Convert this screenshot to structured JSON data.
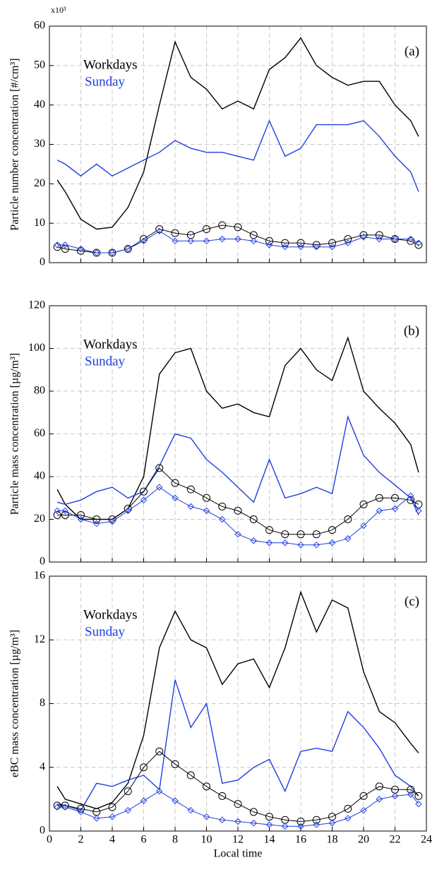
{
  "chart_data": [
    {
      "type": "line",
      "panel_label": "(a)",
      "ylabel": "Particle number concentration [#/cm³]",
      "y_multiplier": "x10³",
      "x": [
        0.5,
        1,
        2,
        3,
        4,
        5,
        6,
        7,
        8,
        9,
        10,
        11,
        12,
        13,
        14,
        15,
        16,
        17,
        18,
        19,
        20,
        21,
        22,
        23,
        23.5
      ],
      "xlim": [
        0,
        24
      ],
      "xticks": [
        0,
        2,
        4,
        6,
        8,
        10,
        12,
        14,
        16,
        18,
        20,
        22,
        24
      ],
      "show_xtick_labels": false,
      "ylim": [
        0,
        60
      ],
      "yticks": [
        0,
        10,
        20,
        30,
        40,
        50,
        60
      ],
      "grid": true,
      "series": [
        {
          "name": "Workdays",
          "color": "#000000",
          "values": [
            21,
            18,
            11,
            8.5,
            9,
            14,
            23,
            40,
            56,
            47,
            44,
            39,
            41,
            39,
            49,
            52,
            57,
            50,
            47,
            45,
            46,
            46,
            40,
            36,
            32
          ]
        },
        {
          "name": "Sunday",
          "color": "#1f3fe0",
          "values": [
            26,
            25,
            22,
            25,
            22,
            24,
            26,
            28,
            31,
            29,
            28,
            28,
            27,
            26,
            36,
            27,
            29,
            35,
            35,
            35,
            36,
            32,
            27,
            23,
            18
          ]
        },
        {
          "color": "#000000",
          "marker": "circle",
          "values": [
            4,
            3.5,
            3,
            2.5,
            2.5,
            3.5,
            6,
            8.5,
            7.5,
            7,
            8.5,
            9.5,
            9,
            7,
            5.5,
            5,
            5,
            4.5,
            5,
            6,
            7,
            7,
            6,
            5.5,
            4.5
          ]
        },
        {
          "color": "#1f3fe0",
          "marker": "diamond",
          "values": [
            4.5,
            4.5,
            3.5,
            2.5,
            2.5,
            3.5,
            5.5,
            8,
            5.5,
            5.5,
            5.5,
            6,
            6,
            5.5,
            4.5,
            4,
            4,
            4,
            4,
            5,
            6.5,
            6,
            6,
            6,
            5
          ]
        }
      ]
    },
    {
      "type": "line",
      "panel_label": "(b)",
      "ylabel": "Particle mass concentration [µg/m³]",
      "x": [
        0.5,
        1,
        2,
        3,
        4,
        5,
        6,
        7,
        8,
        9,
        10,
        11,
        12,
        13,
        14,
        15,
        16,
        17,
        18,
        19,
        20,
        21,
        22,
        23,
        23.5
      ],
      "xlim": [
        0,
        24
      ],
      "xticks": [
        0,
        2,
        4,
        6,
        8,
        10,
        12,
        14,
        16,
        18,
        20,
        22,
        24
      ],
      "show_xtick_labels": false,
      "ylim": [
        0,
        120
      ],
      "yticks": [
        0,
        20,
        40,
        60,
        80,
        100,
        120
      ],
      "grid": true,
      "series": [
        {
          "name": "Workdays",
          "color": "#000000",
          "values": [
            34,
            27,
            20,
            20,
            20,
            25,
            40,
            88,
            98,
            100,
            80,
            72,
            74,
            70,
            68,
            92,
            100,
            90,
            85,
            105,
            80,
            72,
            65,
            55,
            42
          ]
        },
        {
          "name": "Sunday",
          "color": "#1f3fe0",
          "values": [
            28,
            27,
            29,
            33,
            35,
            30,
            33,
            45,
            60,
            58,
            48,
            42,
            35,
            28,
            48,
            30,
            32,
            35,
            32,
            68,
            50,
            42,
            36,
            30,
            22
          ]
        },
        {
          "color": "#000000",
          "marker": "circle",
          "values": [
            22,
            22,
            22,
            20,
            20,
            25,
            33,
            44,
            37,
            34,
            30,
            26,
            24,
            20,
            15,
            13,
            13,
            13,
            15,
            20,
            27,
            30,
            30,
            29,
            27
          ]
        },
        {
          "color": "#1f3fe0",
          "marker": "diamond",
          "values": [
            24,
            24,
            20,
            18,
            19,
            24,
            29,
            35,
            30,
            26,
            24,
            20,
            13,
            10,
            9,
            9,
            8,
            8,
            9,
            11,
            17,
            24,
            25,
            31,
            24
          ]
        }
      ]
    },
    {
      "type": "line",
      "panel_label": "(c)",
      "ylabel": "eBC mass concentration [µg/m³]",
      "xlabel": "Local time",
      "x": [
        0.5,
        1,
        2,
        3,
        4,
        5,
        6,
        7,
        8,
        9,
        10,
        11,
        12,
        13,
        14,
        15,
        16,
        17,
        18,
        19,
        20,
        21,
        22,
        23,
        23.5
      ],
      "xlim": [
        0,
        24
      ],
      "xticks": [
        0,
        2,
        4,
        6,
        8,
        10,
        12,
        14,
        16,
        18,
        20,
        22,
        24
      ],
      "show_xtick_labels": true,
      "ylim": [
        0,
        16
      ],
      "yticks": [
        0,
        4,
        8,
        12,
        16
      ],
      "grid": true,
      "series": [
        {
          "name": "Workdays",
          "color": "#000000",
          "values": [
            2.8,
            2,
            1.7,
            1.4,
            1.8,
            3,
            6,
            11.5,
            13.8,
            12,
            11.5,
            9.2,
            10.5,
            10.8,
            9,
            11.5,
            15,
            12.5,
            14.5,
            14,
            10,
            7.5,
            6.8,
            5.5,
            4.9
          ]
        },
        {
          "name": "Sunday",
          "color": "#1f3fe0",
          "values": [
            1.7,
            1.6,
            1.3,
            3,
            2.8,
            3.2,
            3.5,
            2.6,
            9.5,
            6.5,
            8,
            3,
            3.2,
            4,
            4.5,
            2.5,
            5,
            5.2,
            5,
            7.5,
            6.5,
            5.2,
            3.5,
            2.8,
            2.2
          ]
        },
        {
          "color": "#000000",
          "marker": "circle",
          "values": [
            1.6,
            1.6,
            1.4,
            1.2,
            1.5,
            2.5,
            4,
            5,
            4.2,
            3.5,
            2.8,
            2.2,
            1.7,
            1.2,
            0.9,
            0.7,
            0.6,
            0.7,
            0.9,
            1.4,
            2.2,
            2.8,
            2.6,
            2.6,
            2.2
          ]
        },
        {
          "color": "#1f3fe0",
          "marker": "diamond",
          "values": [
            1.5,
            1.5,
            1.2,
            0.8,
            0.9,
            1.3,
            1.9,
            2.5,
            1.9,
            1.3,
            0.9,
            0.7,
            0.6,
            0.5,
            0.4,
            0.3,
            0.3,
            0.4,
            0.5,
            0.8,
            1.3,
            2,
            2.2,
            2.3,
            1.7
          ]
        }
      ]
    }
  ]
}
